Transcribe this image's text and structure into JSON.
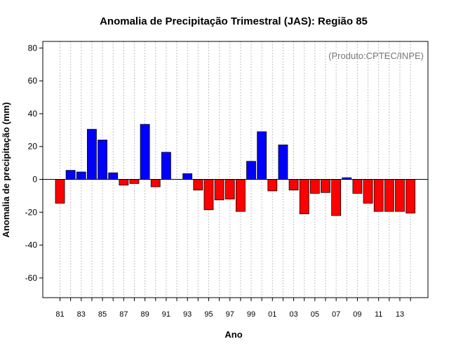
{
  "chart_data": {
    "type": "bar",
    "title": "Anomalia de Precipitação Trimestral (JAS): Região 85",
    "xlabel": "Ano",
    "ylabel": "Anomalia de precipitação (mm)",
    "annotation": "(Produto:CPTEC/INPE)",
    "ylim": [
      -72,
      84
    ],
    "yticks": [
      -60,
      -40,
      -20,
      0,
      20,
      40,
      60,
      80
    ],
    "grid": true,
    "colors": {
      "positive": "#0000ff",
      "negative": "#ff0000",
      "grid": "#bfbfbf",
      "zero_line": "#000000"
    },
    "categories": [
      "81",
      "82",
      "83",
      "84",
      "85",
      "86",
      "87",
      "88",
      "89",
      "90",
      "91",
      "92",
      "93",
      "94",
      "95",
      "96",
      "97",
      "98",
      "99",
      "00",
      "01",
      "02",
      "03",
      "04",
      "05",
      "06",
      "07",
      "08",
      "09",
      "10",
      "11",
      "12",
      "13",
      "14"
    ],
    "xtick_labels": [
      "81",
      "83",
      "85",
      "87",
      "89",
      "91",
      "93",
      "95",
      "97",
      "99",
      "01",
      "03",
      "05",
      "07",
      "09",
      "11",
      "13"
    ],
    "values": [
      -14.5,
      5.5,
      4.5,
      30.5,
      24,
      4,
      -3.5,
      -2.5,
      33.5,
      -4.5,
      16.5,
      0,
      3.5,
      -6.5,
      -18.5,
      -12.5,
      -12,
      -19.5,
      11,
      29,
      -7,
      21,
      -6.5,
      -21,
      -8.5,
      -8,
      -22,
      1,
      -8.5,
      -14.5,
      -19.5,
      -19.5,
      -19.5,
      -20.5
    ]
  }
}
